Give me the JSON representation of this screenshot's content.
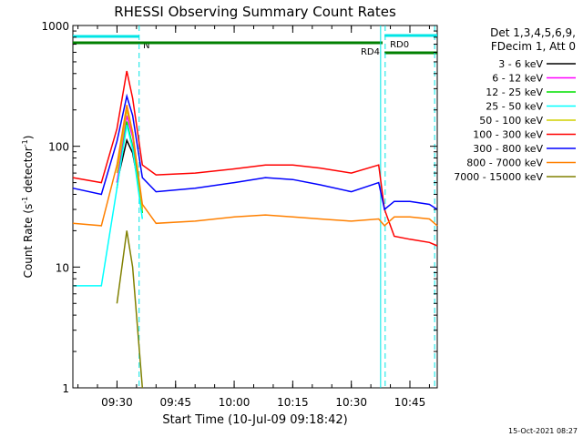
{
  "chart_data": {
    "type": "line",
    "title": "RHESSI Observing Summary Count Rates",
    "xlabel": "Start Time (10-Jul-09 09:18:42)",
    "ylabel": "Count Rate (s",
    "ylabel_sup1": "-1",
    "ylabel_mid": " detector",
    "ylabel_sup2": "-1",
    "ylabel_end": ")",
    "y_scale": "log",
    "ylim": [
      1,
      1000
    ],
    "xlim": [
      "09:18:42",
      "10:52:00"
    ],
    "x_ticks": [
      "09:30",
      "09:45",
      "10:00",
      "10:15",
      "10:30",
      "10:45"
    ],
    "y_ticks": [
      "1",
      "10",
      "100",
      "1000"
    ],
    "grid": false,
    "legend_position": "right",
    "legend_header": [
      "Det 1,3,4,5,6,9,",
      "FDecim 1, Att 0"
    ],
    "flags": [
      {
        "label": "N",
        "start": "09:18:42",
        "end": "09:35:40",
        "color": "#00e5e5"
      },
      {
        "label": "RD0",
        "start": "10:38:30",
        "end": "10:52:00",
        "color": "#00e5e5"
      },
      {
        "label": "RD4",
        "start": "09:18:42",
        "end": "10:38:00",
        "color": "#008000"
      },
      {
        "label": "",
        "start": "10:38:30",
        "end": "10:52:00",
        "color": "#008000"
      }
    ],
    "saa_lines_solid": [
      "10:37:30"
    ],
    "saa_lines_dashed": [
      "09:35:40",
      "10:38:40",
      "10:51:20"
    ],
    "footer_timestamp": "15-Oct-2021 08:27",
    "x": [
      "09:18:42",
      "09:26:00",
      "09:30:00",
      "09:32:30",
      "09:34:00",
      "09:36:30",
      "09:40:00",
      "09:50:00",
      "10:00:00",
      "10:08:00",
      "10:15:00",
      "10:22:00",
      "10:30:00",
      "10:37:00",
      "10:38:30",
      "10:41:00",
      "10:45:00",
      "10:50:00",
      "10:52:00"
    ],
    "series": [
      {
        "name": "3 - 6 keV",
        "color": "#000000",
        "values": [
          null,
          null,
          50,
          112,
          88,
          32,
          null,
          null,
          null,
          null,
          null,
          null,
          null,
          null,
          null,
          null,
          null,
          null,
          null
        ]
      },
      {
        "name": "6 - 12 keV",
        "color": "#ff00ff",
        "values": [
          null,
          null,
          50,
          180,
          120,
          30,
          null,
          null,
          null,
          null,
          null,
          null,
          null,
          null,
          null,
          null,
          null,
          null,
          null
        ]
      },
      {
        "name": "12 - 25 keV",
        "color": "#00e000",
        "values": [
          null,
          null,
          45,
          160,
          100,
          28,
          null,
          null,
          null,
          null,
          null,
          null,
          null,
          null,
          null,
          null,
          null,
          null,
          null
        ]
      },
      {
        "name": "25 - 50 keV",
        "color": "#00ffff",
        "values": [
          7,
          7,
          45,
          150,
          95,
          25,
          null,
          null,
          null,
          null,
          null,
          null,
          null,
          null,
          null,
          null,
          null,
          null,
          null
        ]
      },
      {
        "name": "50 - 100 keV",
        "color": "#d0d000",
        "values": [
          null,
          null,
          60,
          200,
          130,
          30,
          null,
          null,
          null,
          null,
          null,
          null,
          null,
          null,
          null,
          null,
          null,
          null,
          null
        ]
      },
      {
        "name": "100 - 300 keV",
        "color": "#ff0000",
        "values": [
          55,
          50,
          140,
          420,
          250,
          70,
          58,
          60,
          65,
          70,
          70,
          66,
          60,
          70,
          30,
          18,
          17,
          16,
          15
        ]
      },
      {
        "name": "300 - 800 keV",
        "color": "#0000ff",
        "values": [
          45,
          40,
          110,
          260,
          180,
          55,
          42,
          45,
          50,
          55,
          53,
          48,
          42,
          50,
          30,
          35,
          35,
          33,
          30
        ]
      },
      {
        "name": "800 - 7000 keV",
        "color": "#ff8000",
        "values": [
          23,
          22,
          70,
          220,
          130,
          33,
          23,
          24,
          26,
          27,
          26,
          25,
          24,
          25,
          22,
          26,
          26,
          25,
          22
        ]
      },
      {
        "name": "7000 - 15000 keV",
        "color": "#808000",
        "values": [
          null,
          null,
          5,
          20,
          10,
          1,
          null,
          null,
          null,
          null,
          null,
          null,
          null,
          null,
          null,
          null,
          null,
          null,
          null
        ]
      }
    ]
  }
}
